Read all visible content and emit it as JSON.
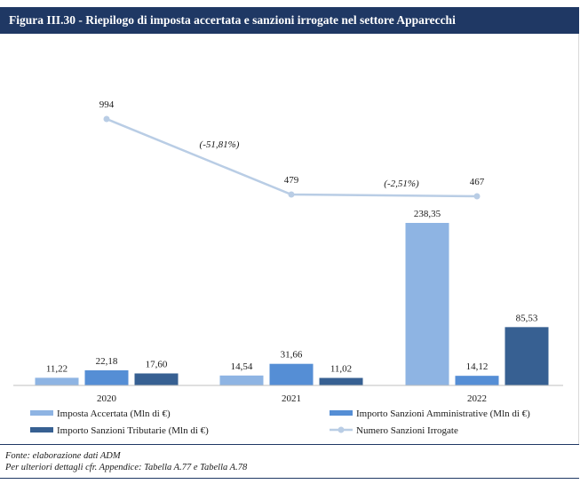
{
  "figure": {
    "title": "Figura III.30 - Riepilogo di imposta accertata e sanzioni irrogate nel settore Apparecchi",
    "source_line1": "Fonte: elaborazione dati ADM",
    "source_line2": "Per ulteriori dettagli cfr. Appendice: Tabella A.77 e Tabella A.78"
  },
  "chart_data": {
    "type": "bar",
    "title": "",
    "xlabel": "",
    "ylabel": "",
    "categories": [
      "2020",
      "2021",
      "2022"
    ],
    "series": [
      {
        "name": "Imposta Accertata (Mln di €)",
        "values": [
          11.22,
          14.54,
          238.35
        ],
        "labels": [
          "11,22",
          "14,54",
          "238,35"
        ],
        "color": "#8eb4e3"
      },
      {
        "name": "Importo Sanzioni Amministrative (Mln di €)",
        "values": [
          22.18,
          31.66,
          14.12
        ],
        "labels": [
          "22,18",
          "31,66",
          "14,12"
        ],
        "color": "#558ed5"
      },
      {
        "name": "Importo Sanzioni Tributarie (Mln di €)",
        "values": [
          17.6,
          11.02,
          85.53
        ],
        "labels": [
          "17,60",
          "11,02",
          "85,53"
        ],
        "color": "#376092"
      }
    ],
    "line_series": {
      "name": "Numero Sanzioni Irrogate",
      "values": [
        994,
        479,
        467
      ],
      "labels": [
        "994",
        "479",
        "467"
      ],
      "color": "#b9cde5",
      "change_labels": [
        "(-51,81%)",
        "(-2,51%)"
      ]
    },
    "bar_ylim": [
      0,
      250
    ],
    "line_ylim": [
      0,
      1200
    ],
    "legend_position": "bottom",
    "grid": false
  }
}
